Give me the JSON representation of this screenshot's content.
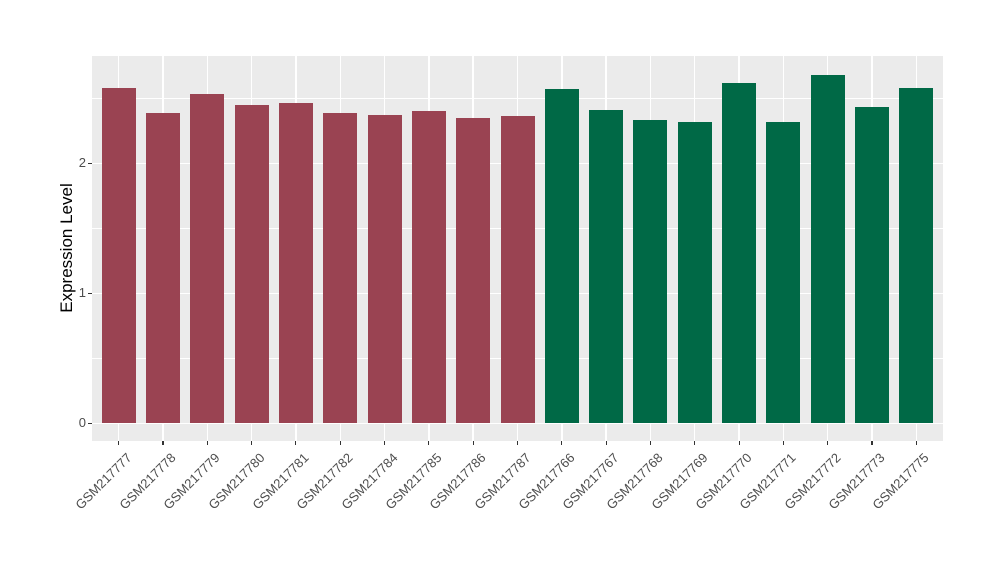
{
  "figure": {
    "background": "#FFFFFF",
    "panel_background": "#EBEBEB",
    "grid_color": "#FFFFFF",
    "axis_text_color": "#4D4D4D",
    "axis_title_color": "#000000",
    "tick_color": "#333333"
  },
  "chart_data": {
    "type": "bar",
    "title": "",
    "xlabel": "",
    "ylabel": "Expression Level",
    "categories": [
      "GSM217777",
      "GSM217778",
      "GSM217779",
      "GSM217780",
      "GSM217781",
      "GSM217782",
      "GSM217784",
      "GSM217785",
      "GSM217786",
      "GSM217787",
      "GSM217766",
      "GSM217767",
      "GSM217768",
      "GSM217769",
      "GSM217770",
      "GSM217771",
      "GSM217772",
      "GSM217773",
      "GSM217775"
    ],
    "values": [
      2.58,
      2.39,
      2.53,
      2.45,
      2.46,
      2.39,
      2.37,
      2.4,
      2.35,
      2.36,
      2.57,
      2.41,
      2.33,
      2.32,
      2.62,
      2.32,
      2.68,
      2.43,
      2.58
    ],
    "bar_colors": [
      "#9A4352",
      "#9A4352",
      "#9A4352",
      "#9A4352",
      "#9A4352",
      "#9A4352",
      "#9A4352",
      "#9A4352",
      "#9A4352",
      "#9A4352",
      "#006946",
      "#006946",
      "#006946",
      "#006946",
      "#006946",
      "#006946",
      "#006946",
      "#006946",
      "#006946"
    ],
    "group_colors": {
      "maroon": "#9A4352",
      "green": "#006946"
    },
    "yticks": [
      0,
      1,
      2
    ],
    "ytick_labels": [
      "0",
      "1",
      "2"
    ],
    "yticks_minor": [
      0.5,
      1.5,
      2.5
    ],
    "ylim": [
      0,
      2.82
    ],
    "grid": "on",
    "legend": "none",
    "x_label_rotation_deg": 45
  }
}
